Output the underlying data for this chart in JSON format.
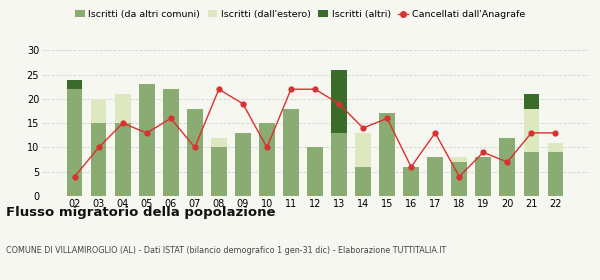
{
  "years": [
    "02",
    "03",
    "04",
    "05",
    "06",
    "07",
    "08",
    "09",
    "10",
    "11",
    "12",
    "13",
    "14",
    "15",
    "16",
    "17",
    "18",
    "19",
    "20",
    "21",
    "22"
  ],
  "iscritti_altri_comuni": [
    22,
    15,
    15,
    23,
    22,
    18,
    10,
    13,
    15,
    18,
    10,
    13,
    6,
    17,
    6,
    8,
    7,
    8,
    12,
    9,
    9
  ],
  "iscritti_estero": [
    0,
    5,
    6,
    0,
    0,
    0,
    2,
    0,
    0,
    0,
    0,
    0,
    7,
    0,
    0,
    0,
    1,
    0,
    0,
    9,
    2
  ],
  "iscritti_altri": [
    2,
    0,
    0,
    0,
    0,
    0,
    0,
    0,
    0,
    0,
    0,
    13,
    0,
    0,
    0,
    0,
    0,
    0,
    0,
    3,
    0
  ],
  "cancellati": [
    4,
    10,
    15,
    13,
    16,
    10,
    22,
    19,
    10,
    22,
    22,
    19,
    14,
    16,
    6,
    13,
    4,
    9,
    7,
    13,
    13
  ],
  "color_altri_comuni": "#8aab72",
  "color_estero": "#dde8c0",
  "color_altri": "#3a6b2a",
  "color_cancellati": "#d93030",
  "title": "Flusso migratorio della popolazione",
  "subtitle": "COMUNE DI VILLAMIROGLIO (AL) - Dati ISTAT (bilancio demografico 1 gen-31 dic) - Elaborazione TUTTITALIA.IT",
  "ylim": [
    0,
    30
  ],
  "yticks": [
    0,
    5,
    10,
    15,
    20,
    25,
    30
  ],
  "bg_color": "#f7f7f2",
  "grid_color": "#d0d0d0"
}
